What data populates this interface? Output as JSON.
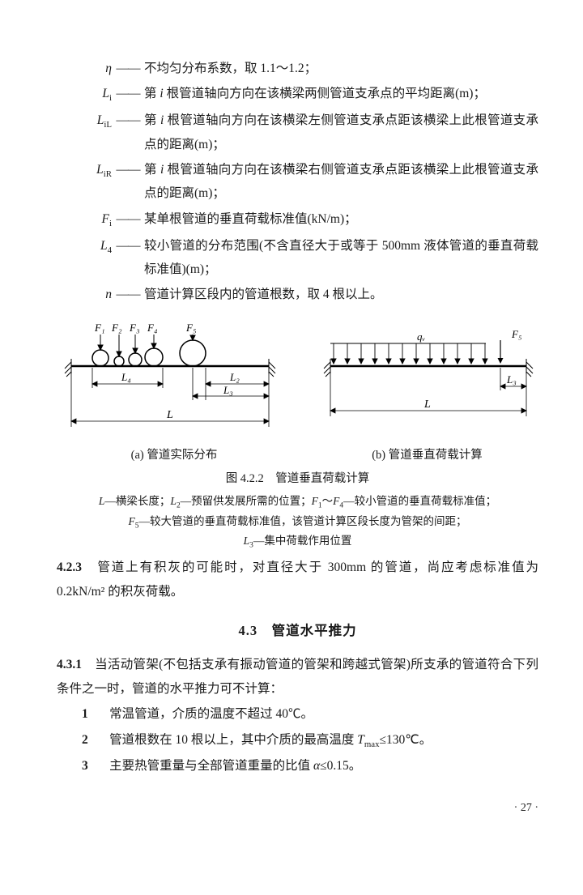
{
  "defs": [
    {
      "sym": "η",
      "symStyle": "italic",
      "desc": "不均匀分布系数，取 1.1～1.2；"
    },
    {
      "sym": "L<sub>i</sub>",
      "desc": "第 <span class='mi'>i</span> 根管道轴向方向在该横梁两侧管道支承点的平均距离(m)；"
    },
    {
      "sym": "L<sub>iL</sub>",
      "desc": "第 <span class='mi'>i</span> 根管道轴向方向在该横梁左侧管道支承点距该横梁上此根管道支承点的距离(m)；"
    },
    {
      "sym": "L<sub>iR</sub>",
      "desc": "第 <span class='mi'>i</span> 根管道轴向方向在该横梁右侧管道支承点距该横梁上此根管道支承点的距离(m)；"
    },
    {
      "sym": "F<sub>i</sub>",
      "desc": "某单根管道的垂直荷载标准值(kN/m)；"
    },
    {
      "sym": "L<sub>4</sub>",
      "desc": "较小管道的分布范围(不含直径大于或等于 500mm 液体管道的垂直荷载标准值)(m)；"
    },
    {
      "sym": "n",
      "desc": "管道计算区段内的管道根数，取 4 根以上。"
    }
  ],
  "figA": {
    "F": [
      "F₁",
      "F₂",
      "F₃",
      "F₄",
      "F₅"
    ],
    "dims": {
      "L4": "L₄",
      "L2": "L₂",
      "L3": "L₃",
      "L": "L"
    },
    "caption": "(a) 管道实际分布"
  },
  "figB": {
    "F5": "F₅",
    "qv": "qᵥ",
    "dims": {
      "L3": "L₃",
      "L": "L"
    },
    "caption": "(b) 管道垂直荷载计算"
  },
  "figMainCap": "图 4.2.2　管道垂直荷载计算",
  "figNotes": [
    "<span class='mi'>L</span>—横梁长度；<span class='mi'>L</span><sub>2</sub>—预留供发展所需的位置；<span class='mi'>F</span><sub>1</sub>～<span class='mi'>F</span><sub>4</sub>—较小管道的垂直荷载标准值；",
    "<span class='mi'>F</span><sub>5</sub>—较大管道的垂直荷载标准值，该管道计算区段长度为管架的间距；",
    "<span class='mi'>L</span><sub>3</sub>—集中荷载作用位置"
  ],
  "clause423": {
    "num": "4.2.3",
    "body": "管道上有积灰的可能时，对直径大于 300mm 的管道，尚应考虑标准值为 0.2kN/m² 的积灰荷载。"
  },
  "sec43": {
    "head": "4.3　管道水平推力"
  },
  "clause431": {
    "num": "4.3.1",
    "body": "当活动管架(不包括支承有振动管道的管架和跨越式管架)所支承的管道符合下列条件之一时，管道的水平推力可不计算：",
    "items": [
      "常温管道，介质的温度不超过 40℃。",
      "管道根数在 10 根以上，其中介质的最高温度 <span class='mi'>T</span><sub>max</sub>≤130℃。",
      "主要热管重量与全部管道重量的比值 <span class='mi'>α</span>≤0.15。"
    ]
  },
  "pageNum": "· 27 ·"
}
